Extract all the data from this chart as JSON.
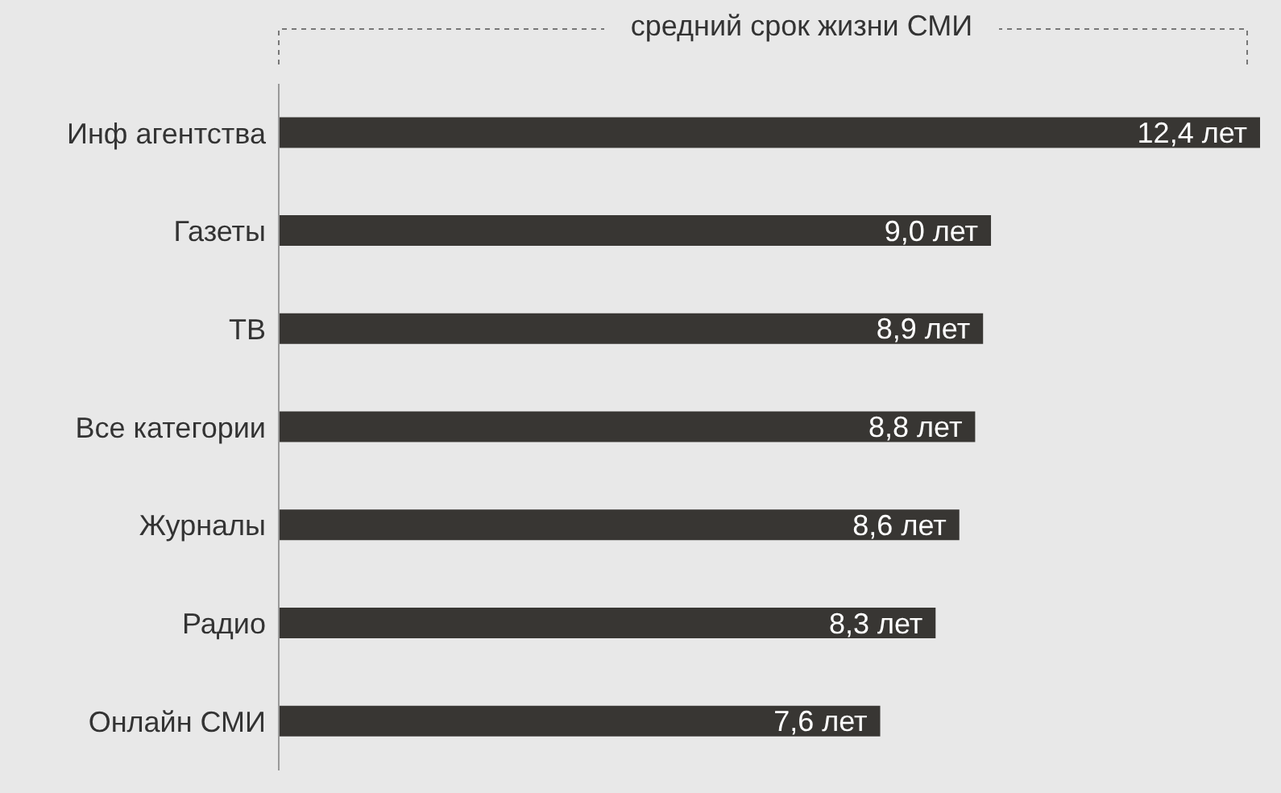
{
  "chart_data": {
    "type": "bar",
    "orientation": "horizontal",
    "title": "средний срок жизни СМИ",
    "categories": [
      "Инф агентства",
      "Газеты",
      "ТВ",
      "Все категории",
      "Журналы",
      "Радио",
      "Онлайн СМИ"
    ],
    "values": [
      12.4,
      9.0,
      8.9,
      8.8,
      8.6,
      8.3,
      7.6
    ],
    "value_labels": [
      "12,4 лет",
      "9,0 лет",
      "8,9 лет",
      "8,8 лет",
      "8,6 лет",
      "8,3 лет",
      "7,6 лет"
    ],
    "color": "#383633"
  }
}
